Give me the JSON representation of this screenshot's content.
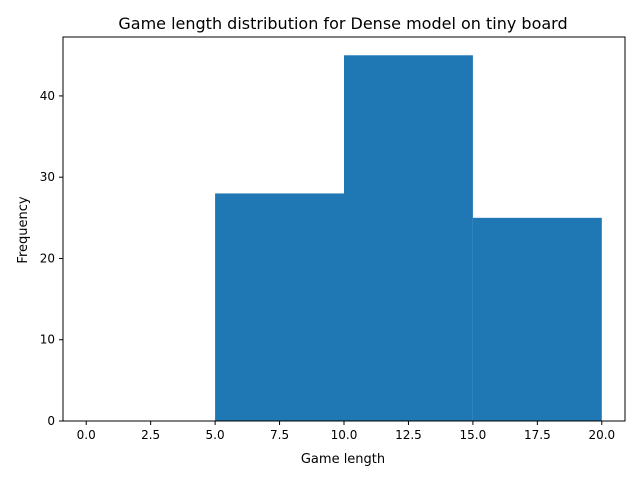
{
  "chart_data": {
    "type": "bar",
    "title": "Game length distribution for Dense model on tiny board",
    "xlabel": "Game length",
    "ylabel": "Frequency",
    "bins": [
      {
        "start": 0,
        "end": 5,
        "value": 0
      },
      {
        "start": 5,
        "end": 10,
        "value": 28
      },
      {
        "start": 10,
        "end": 15,
        "value": 45
      },
      {
        "start": 15,
        "end": 20,
        "value": 25
      }
    ],
    "xlim": [
      -0.9,
      20.9
    ],
    "ylim": [
      0,
      47.25
    ],
    "xticks": [
      0,
      2.5,
      5,
      7.5,
      10,
      12.5,
      15,
      17.5,
      20
    ],
    "xtick_labels": [
      "0.0",
      "2.5",
      "5.0",
      "7.5",
      "10.0",
      "12.5",
      "15.0",
      "17.5",
      "20.0"
    ],
    "yticks": [
      0,
      10,
      20,
      30,
      40
    ],
    "ytick_labels": [
      "0",
      "10",
      "20",
      "30",
      "40"
    ],
    "bar_color": "#1f77b4",
    "grid": false,
    "legend": "none"
  }
}
